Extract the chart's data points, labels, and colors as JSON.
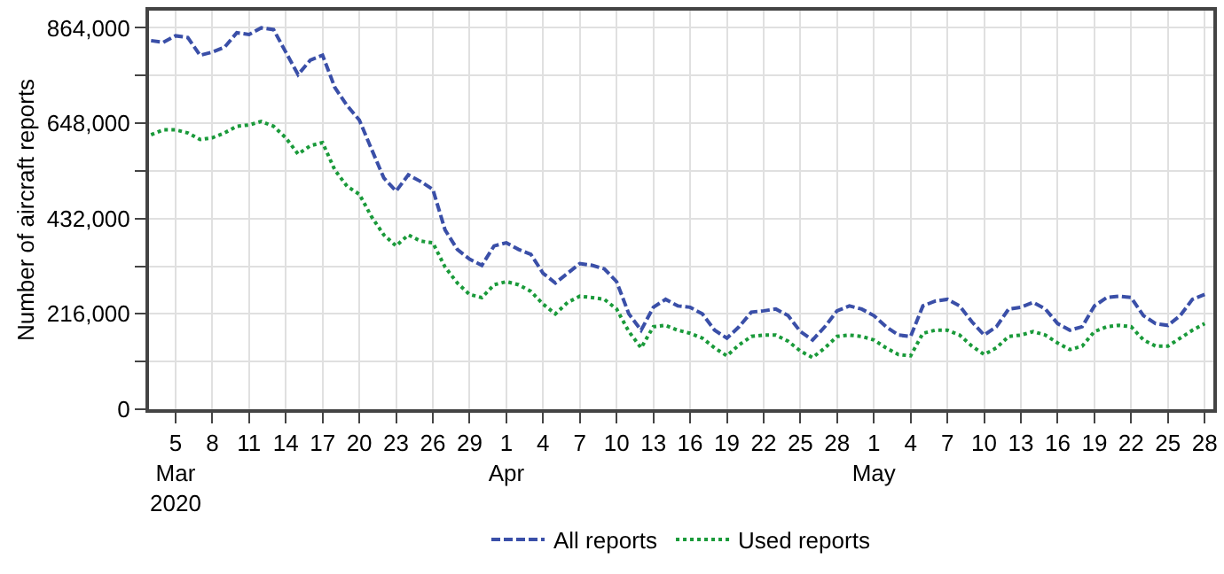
{
  "chart_data": {
    "type": "line",
    "ylabel": "Number of aircraft reports",
    "x": [
      "2020-03-03",
      "2020-03-04",
      "2020-03-05",
      "2020-03-06",
      "2020-03-07",
      "2020-03-08",
      "2020-03-09",
      "2020-03-10",
      "2020-03-11",
      "2020-03-12",
      "2020-03-13",
      "2020-03-14",
      "2020-03-15",
      "2020-03-16",
      "2020-03-17",
      "2020-03-18",
      "2020-03-19",
      "2020-03-20",
      "2020-03-21",
      "2020-03-22",
      "2020-03-23",
      "2020-03-24",
      "2020-03-25",
      "2020-03-26",
      "2020-03-27",
      "2020-03-28",
      "2020-03-29",
      "2020-03-30",
      "2020-03-31",
      "2020-04-01",
      "2020-04-02",
      "2020-04-03",
      "2020-04-04",
      "2020-04-05",
      "2020-04-06",
      "2020-04-07",
      "2020-04-08",
      "2020-04-09",
      "2020-04-10",
      "2020-04-11",
      "2020-04-12",
      "2020-04-13",
      "2020-04-14",
      "2020-04-15",
      "2020-04-16",
      "2020-04-17",
      "2020-04-18",
      "2020-04-19",
      "2020-04-20",
      "2020-04-21",
      "2020-04-22",
      "2020-04-23",
      "2020-04-24",
      "2020-04-25",
      "2020-04-26",
      "2020-04-27",
      "2020-04-28",
      "2020-04-29",
      "2020-04-30",
      "2020-05-01",
      "2020-05-02",
      "2020-05-03",
      "2020-05-04",
      "2020-05-05",
      "2020-05-06",
      "2020-05-07",
      "2020-05-08",
      "2020-05-09",
      "2020-05-10",
      "2020-05-11",
      "2020-05-12",
      "2020-05-13",
      "2020-05-14",
      "2020-05-15",
      "2020-05-16",
      "2020-05-17",
      "2020-05-18",
      "2020-05-19",
      "2020-05-20",
      "2020-05-21",
      "2020-05-22",
      "2020-05-23",
      "2020-05-24",
      "2020-05-25",
      "2020-05-26",
      "2020-05-27",
      "2020-05-28"
    ],
    "series": [
      {
        "name": "All reports",
        "color": "#3a4fa8",
        "line_style": "dashed",
        "values": [
          835000,
          831000,
          846000,
          842000,
          802000,
          809000,
          820000,
          853000,
          849000,
          864000,
          860000,
          809000,
          758000,
          791000,
          802000,
          729000,
          688000,
          655000,
          589000,
          524000,
          494000,
          531000,
          516000,
          498000,
          406000,
          362000,
          340000,
          326000,
          370000,
          377000,
          362000,
          351000,
          308000,
          286000,
          308000,
          330000,
          326000,
          318000,
          289000,
          216000,
          179000,
          231000,
          249000,
          234000,
          231000,
          216000,
          179000,
          161000,
          187000,
          220000,
          223000,
          227000,
          212000,
          176000,
          157000,
          187000,
          223000,
          234000,
          227000,
          212000,
          187000,
          168000,
          165000,
          234000,
          245000,
          249000,
          234000,
          198000,
          168000,
          187000,
          227000,
          231000,
          242000,
          227000,
          194000,
          179000,
          187000,
          234000,
          253000,
          256000,
          253000,
          212000,
          194000,
          190000,
          212000,
          249000,
          260000
        ]
      },
      {
        "name": "Used reports",
        "color": "#1a9a3a",
        "line_style": "dotted",
        "values": [
          622000,
          633000,
          633000,
          626000,
          611000,
          615000,
          626000,
          641000,
          644000,
          652000,
          641000,
          615000,
          578000,
          597000,
          604000,
          542000,
          505000,
          487000,
          436000,
          395000,
          370000,
          395000,
          381000,
          377000,
          322000,
          286000,
          260000,
          253000,
          282000,
          289000,
          282000,
          267000,
          238000,
          216000,
          242000,
          256000,
          253000,
          249000,
          227000,
          176000,
          139000,
          187000,
          190000,
          179000,
          172000,
          161000,
          139000,
          121000,
          146000,
          165000,
          168000,
          168000,
          154000,
          132000,
          117000,
          139000,
          165000,
          168000,
          165000,
          157000,
          139000,
          124000,
          121000,
          172000,
          179000,
          179000,
          168000,
          143000,
          124000,
          139000,
          165000,
          168000,
          176000,
          168000,
          150000,
          135000,
          143000,
          176000,
          187000,
          190000,
          187000,
          157000,
          143000,
          143000,
          161000,
          179000,
          194000
        ]
      }
    ],
    "xlim": [
      "2020-03-02T20:00",
      "2020-05-28T17:00"
    ],
    "xticks": [
      {
        "value": "2020-03-05",
        "label": "5\nMar\n2020"
      },
      {
        "value": "2020-03-08",
        "label": "8"
      },
      {
        "value": "2020-03-11",
        "label": "11"
      },
      {
        "value": "2020-03-14",
        "label": "14"
      },
      {
        "value": "2020-03-17",
        "label": "17"
      },
      {
        "value": "2020-03-20",
        "label": "20"
      },
      {
        "value": "2020-03-23",
        "label": "23"
      },
      {
        "value": "2020-03-26",
        "label": "26"
      },
      {
        "value": "2020-03-29",
        "label": "29"
      },
      {
        "value": "2020-04-01",
        "label": "1\nApr"
      },
      {
        "value": "2020-04-04",
        "label": "4"
      },
      {
        "value": "2020-04-07",
        "label": "7"
      },
      {
        "value": "2020-04-10",
        "label": "10"
      },
      {
        "value": "2020-04-13",
        "label": "13"
      },
      {
        "value": "2020-04-16",
        "label": "16"
      },
      {
        "value": "2020-04-19",
        "label": "19"
      },
      {
        "value": "2020-04-22",
        "label": "22"
      },
      {
        "value": "2020-04-25",
        "label": "25"
      },
      {
        "value": "2020-04-28",
        "label": "28"
      },
      {
        "value": "2020-05-01",
        "label": "1\nMay"
      },
      {
        "value": "2020-05-04",
        "label": "4"
      },
      {
        "value": "2020-05-07",
        "label": "7"
      },
      {
        "value": "2020-05-10",
        "label": "10"
      },
      {
        "value": "2020-05-13",
        "label": "13"
      },
      {
        "value": "2020-05-16",
        "label": "16"
      },
      {
        "value": "2020-05-19",
        "label": "19"
      },
      {
        "value": "2020-05-22",
        "label": "22"
      },
      {
        "value": "2020-05-25",
        "label": "25"
      },
      {
        "value": "2020-05-28",
        "label": "28"
      }
    ],
    "ylim": [
      0,
      903000
    ],
    "yticks": [
      0,
      {
        "value": 108000,
        "label": null
      },
      {
        "value": 216000,
        "label": "216,000"
      },
      {
        "value": 324000,
        "label": null
      },
      {
        "value": 432000,
        "label": "432,000"
      },
      {
        "value": 540000,
        "label": null
      },
      {
        "value": 648000,
        "label": "648,000"
      },
      {
        "value": 756000,
        "label": null
      },
      {
        "value": 864000,
        "label": "864,000"
      }
    ],
    "grid": true,
    "legend": "bottom",
    "marker": "none"
  }
}
